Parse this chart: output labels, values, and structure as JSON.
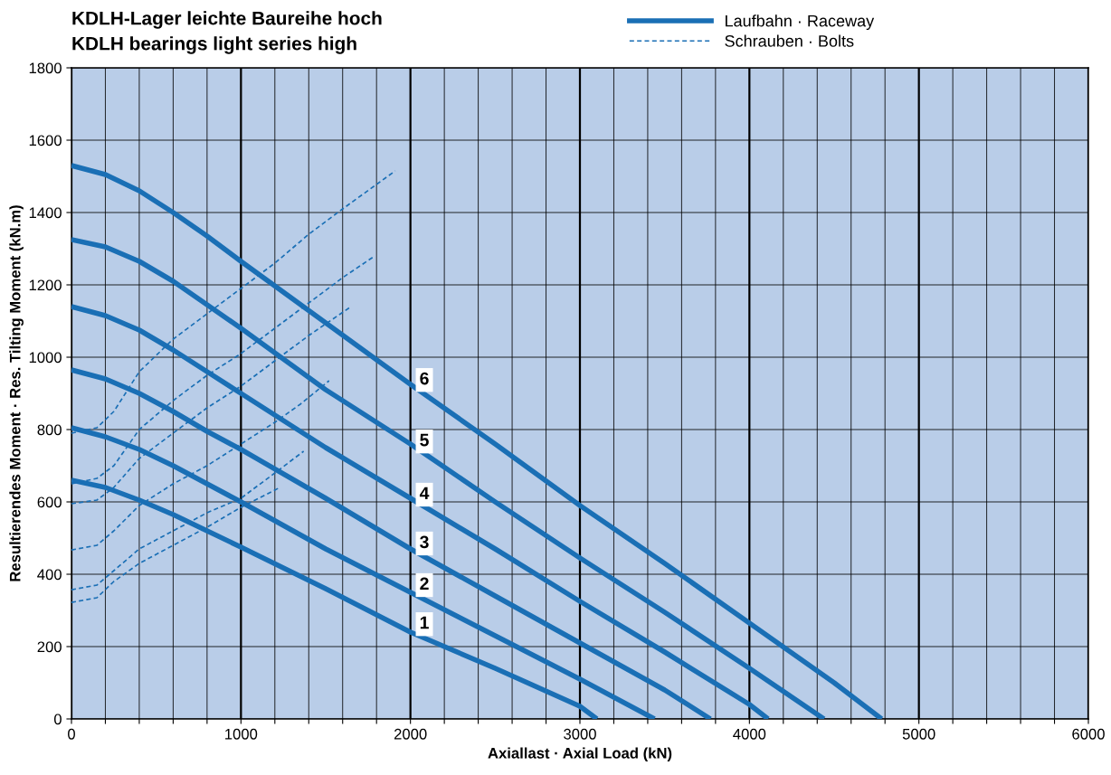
{
  "chart_data": {
    "type": "line",
    "title": "KDLH-Lager leichte Baureihe hoch",
    "subtitle": "KDLH bearings light series high",
    "xlabel": "Axiallast · Axial Load (kN)",
    "ylabel": "Resultierendes Moment · Res. Tilting Moment (kN.m)",
    "xlim": [
      0,
      6000
    ],
    "ylim": [
      0,
      1800
    ],
    "xticks": [
      0,
      {
        "value": 200,
        "label": null
      },
      {
        "value": 400,
        "label": null
      },
      {
        "value": 600,
        "label": null
      },
      {
        "value": 800,
        "label": null
      },
      1000,
      {
        "value": 1200,
        "label": null
      },
      {
        "value": 1400,
        "label": null
      },
      {
        "value": 1600,
        "label": null
      },
      {
        "value": 1800,
        "label": null
      },
      2000,
      {
        "value": 2200,
        "label": null
      },
      {
        "value": 2400,
        "label": null
      },
      {
        "value": 2600,
        "label": null
      },
      {
        "value": 2800,
        "label": null
      },
      3000,
      {
        "value": 3200,
        "label": null
      },
      {
        "value": 3400,
        "label": null
      },
      {
        "value": 3600,
        "label": null
      },
      {
        "value": 3800,
        "label": null
      },
      4000,
      {
        "value": 4200,
        "label": null
      },
      {
        "value": 4400,
        "label": null
      },
      {
        "value": 4600,
        "label": null
      },
      {
        "value": 4800,
        "label": null
      },
      5000,
      {
        "value": 5200,
        "label": null
      },
      {
        "value": 5400,
        "label": null
      },
      {
        "value": 5600,
        "label": null
      },
      {
        "value": 5800,
        "label": null
      },
      6000
    ],
    "yticks": [
      0,
      200,
      400,
      600,
      800,
      1000,
      1200,
      1400,
      1600,
      1800
    ],
    "grid": true,
    "legend": "top right",
    "series": [
      {
        "name": "Laufbahn · Raceway",
        "color": "#1a6fb5",
        "line_style": "solid",
        "x": [
          0,
          200,
          400,
          600,
          800,
          1000,
          1500,
          2000,
          2500,
          3000,
          3500,
          4000,
          4500,
          4780
        ],
        "values": [
          1530,
          1505,
          1460,
          1400,
          1335,
          1265,
          1095,
          925,
          760,
          590,
          430,
          265,
          100,
          0
        ]
      },
      {
        "color": "#1a6fb5",
        "line_style": "solid",
        "x": [
          0,
          200,
          400,
          600,
          800,
          1000,
          1500,
          2000,
          2500,
          3000,
          3500,
          4000,
          4440
        ],
        "values": [
          1325,
          1305,
          1265,
          1210,
          1145,
          1080,
          910,
          760,
          600,
          445,
          295,
          140,
          0
        ]
      },
      {
        "color": "#1a6fb5",
        "line_style": "solid",
        "x": [
          0,
          200,
          400,
          600,
          800,
          1000,
          1500,
          2000,
          2500,
          3000,
          3500,
          4000,
          4110
        ],
        "values": [
          1140,
          1115,
          1075,
          1020,
          960,
          900,
          750,
          610,
          470,
          325,
          185,
          40,
          0
        ]
      },
      {
        "color": "#1a6fb5",
        "line_style": "solid",
        "x": [
          0,
          200,
          400,
          600,
          800,
          1000,
          1500,
          2000,
          2500,
          3000,
          3500,
          3770
        ],
        "values": [
          965,
          940,
          900,
          850,
          795,
          745,
          610,
          470,
          340,
          210,
          80,
          0
        ]
      },
      {
        "color": "#1a6fb5",
        "line_style": "solid",
        "x": [
          0,
          200,
          400,
          600,
          800,
          1000,
          1500,
          2000,
          2500,
          3000,
          3440
        ],
        "values": [
          805,
          780,
          745,
          700,
          650,
          600,
          470,
          350,
          230,
          110,
          0
        ]
      },
      {
        "color": "#1a6fb5",
        "line_style": "solid",
        "x": [
          0,
          200,
          400,
          600,
          800,
          1000,
          1500,
          2000,
          2500,
          3000,
          3100
        ],
        "values": [
          660,
          640,
          605,
          565,
          520,
          475,
          360,
          240,
          140,
          35,
          0
        ]
      },
      {
        "name": "Schrauben · Bolts",
        "color": "#1a6fb5",
        "line_style": "dashed",
        "x": [
          0,
          150,
          250,
          400,
          600,
          800,
          1000,
          1200,
          1400,
          1600,
          1910
        ],
        "values": [
          790,
          805,
          850,
          960,
          1050,
          1120,
          1190,
          1260,
          1340,
          1410,
          1515
        ]
      },
      {
        "color": "#1a6fb5",
        "line_style": "dashed",
        "x": [
          0,
          150,
          250,
          400,
          600,
          800,
          1000,
          1200,
          1400,
          1600,
          1790
        ],
        "values": [
          650,
          665,
          700,
          800,
          880,
          950,
          1010,
          1080,
          1150,
          1220,
          1280
        ]
      },
      {
        "color": "#1a6fb5",
        "line_style": "dashed",
        "x": [
          0,
          150,
          250,
          400,
          600,
          800,
          1000,
          1200,
          1400,
          1650
        ],
        "values": [
          595,
          605,
          640,
          720,
          790,
          860,
          920,
          990,
          1060,
          1140
        ]
      },
      {
        "color": "#1a6fb5",
        "line_style": "dashed",
        "x": [
          0,
          150,
          250,
          400,
          600,
          800,
          1000,
          1200,
          1350,
          1520
        ],
        "values": [
          467,
          480,
          520,
          590,
          650,
          700,
          760,
          820,
          870,
          935
        ]
      },
      {
        "color": "#1a6fb5",
        "line_style": "dashed",
        "x": [
          0,
          150,
          250,
          400,
          600,
          800,
          1000,
          1200,
          1370
        ],
        "values": [
          357,
          370,
          410,
          470,
          520,
          570,
          610,
          680,
          740
        ]
      },
      {
        "color": "#1a6fb5",
        "line_style": "dashed",
        "x": [
          0,
          150,
          250,
          400,
          600,
          800,
          1000,
          1230
        ],
        "values": [
          322,
          335,
          380,
          430,
          480,
          530,
          585,
          640
        ]
      }
    ],
    "annotations": [
      {
        "text": "6",
        "y": 937
      },
      {
        "text": "5",
        "y": 767
      },
      {
        "text": "4",
        "y": 620
      },
      {
        "text": "3",
        "y": 485
      },
      {
        "text": "2",
        "y": 370
      },
      {
        "text": "1",
        "y": 262
      }
    ]
  }
}
